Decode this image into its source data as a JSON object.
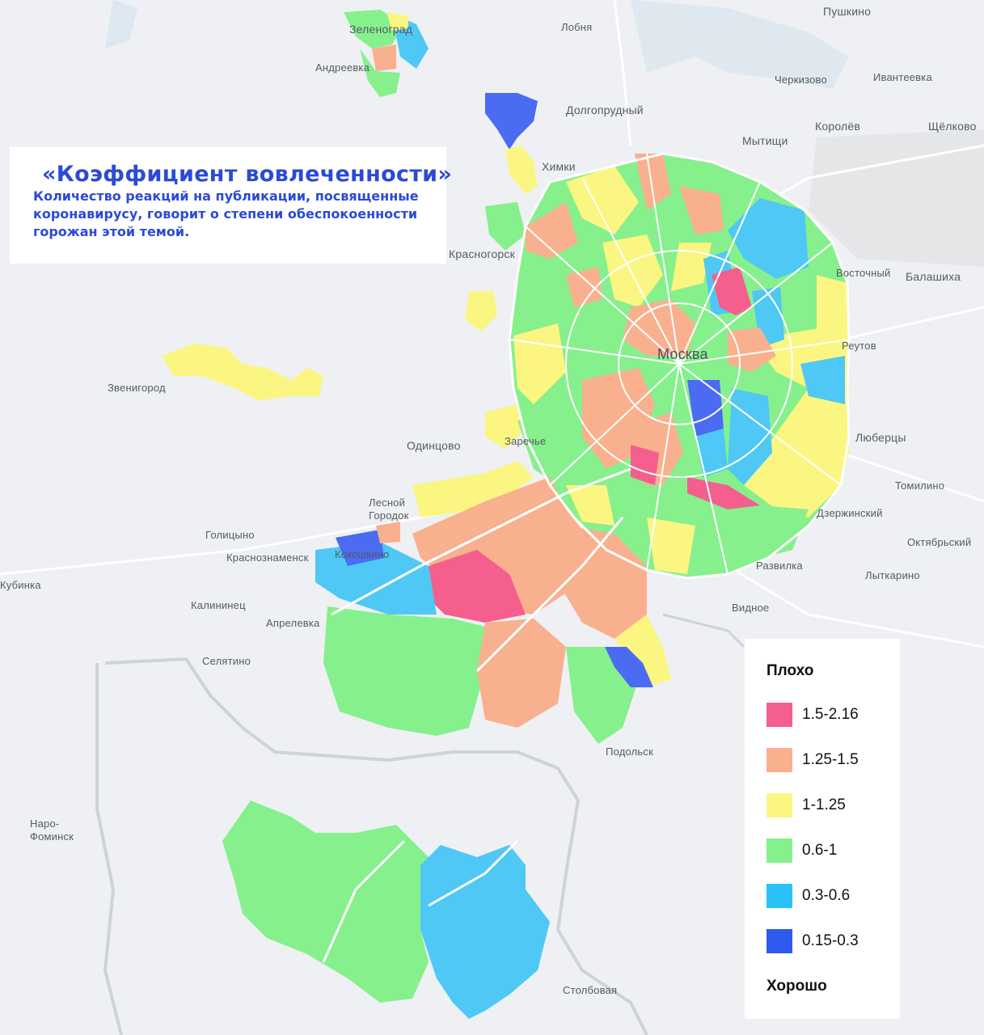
{
  "title": "«Коэффициент вовлеченности»",
  "subtitle": "Количество реакций на публикации, посвященные\nкоронавирусу, говорит о степени обеспокоенности\nгорожан этой темой.",
  "colors": {
    "pink": "#f45f8e",
    "orange": "#f9b08e",
    "yellow": "#fbf682",
    "green": "#86f08d",
    "light_blue": "#4fc8f5",
    "blue": "#4a6bf2",
    "background": "#eef0f3"
  },
  "legend": {
    "top_label": "Плохо",
    "bottom_label": "Хорошо",
    "items": [
      {
        "label": "1.5-2.16",
        "color": "#f45f8e"
      },
      {
        "label": "1.25-1.5",
        "color": "#f9b08e"
      },
      {
        "label": "1-1.25",
        "color": "#fbf682"
      },
      {
        "label": "0.6-1",
        "color": "#86f08d"
      },
      {
        "label": "0.3-0.6",
        "color": "#4fc8f5"
      },
      {
        "label": "0.15-0.3",
        "color": "#2f5af2"
      }
    ]
  },
  "places": {
    "zelenograd": "Зеленоград",
    "andreevka": "Андреевка",
    "lobnya": "Лобня",
    "pushkino": "Пушкино",
    "cherkizovo": "Черкизово",
    "ivanteevka": "Ивантеевка",
    "dolgoprudny": "Долгопрудный",
    "korolev": "Королёв",
    "shchelkovo": "Щёлково",
    "mytishchi": "Мытищи",
    "khimki": "Химки",
    "krasnogorsk": "Красногорск",
    "vostochny": "Восточный",
    "balashikha": "Балашиха",
    "moskva": "Москва",
    "reutov": "Реутов",
    "zvenigorod": "Звенигород",
    "odintsovo": "Одинцово",
    "zarechye": "Заречье",
    "lyubertsy": "Люберцы",
    "tomilino": "Томилино",
    "lesnoy_gorodok": "Лесной\nГородок",
    "golitsyno": "Голицыно",
    "dzerzhinsky": "Дзержинский",
    "oktyabrsky": "Октябрьский",
    "krasnoznamensk": "Краснознаменск",
    "kokoshkino": "Кокошкино",
    "razvilka": "Развилка",
    "kubinka": "Кубинка",
    "lytkarino": "Лыткарино",
    "kalininets": "Калининец",
    "vidnoe": "Видное",
    "aprelevka": "Апрелевка",
    "selyatino": "Селятино",
    "podolsk": "Подольск",
    "naro_fominsk": "Наро-\nФоминск",
    "stolbovaya": "Столбовая"
  }
}
